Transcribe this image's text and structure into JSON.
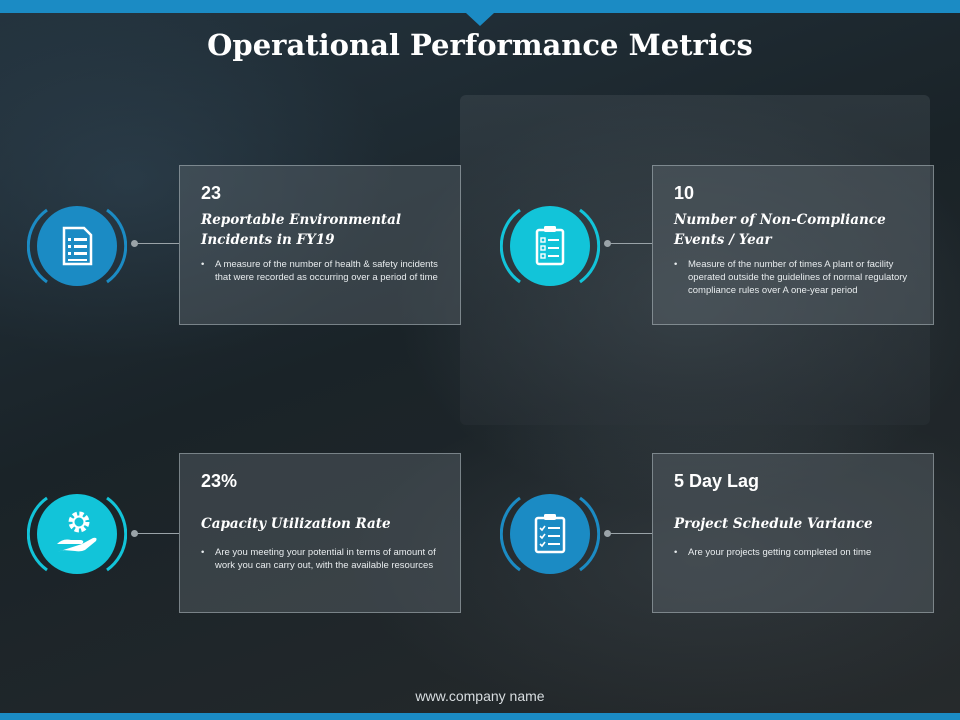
{
  "title": "Operational Performance Metrics",
  "footer": "www.company  name",
  "colors": {
    "accent_blue": "#1b8bc4",
    "accent_cyan": "#12c4d9",
    "bar": "#1b8bc4"
  },
  "metrics": [
    {
      "value": "23",
      "title_line1": "Reportable Environmental",
      "title_line2": "Incidents in FY19",
      "bullet": "•",
      "description": "A measure of the number of health & safety incidents that were recorded as occurring over a period of time",
      "icon": "document-list-icon"
    },
    {
      "value": "10",
      "title_line1": "Number of Non-Compliance",
      "title_line2": "Events / Year",
      "bullet": "•",
      "description": "Measure of the number of times A plant or facility operated outside the guidelines of normal regulatory compliance rules over A one-year period",
      "icon": "clipboard-checklist-icon"
    },
    {
      "value": "23%",
      "title_line1": "Capacity Utilization Rate",
      "title_line2": "",
      "bullet": "•",
      "description": "Are you meeting your potential in terms of amount of work you can carry out, with the available resources",
      "icon": "gear-hand-icon"
    },
    {
      "value": "5 Day Lag",
      "title_line1": "Project Schedule Variance",
      "title_line2": "",
      "bullet": "•",
      "description": "Are your projects getting completed on time",
      "icon": "clipboard-tasks-icon"
    }
  ]
}
